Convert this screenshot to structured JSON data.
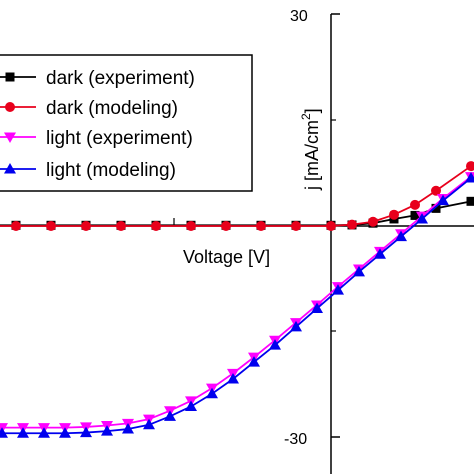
{
  "chart_data": {
    "type": "line",
    "xlabel": "Voltage [V]",
    "ylabel": "j [mA/cm",
    "ylabel_sup": "2",
    "ylabel_close": "]",
    "ylim": [
      -30,
      30
    ],
    "xlim": [
      -0.8,
      0.2
    ],
    "yticks": [
      "30",
      "-30"
    ],
    "legend_position": "top-left",
    "series": [
      {
        "name": "dark (experiment)",
        "color": "#000000",
        "marker": "square",
        "x": [
          -0.8,
          -0.75,
          -0.7,
          -0.65,
          -0.6,
          -0.55,
          -0.5,
          -0.45,
          -0.4,
          -0.35,
          -0.3,
          -0.25,
          -0.2,
          -0.15,
          -0.1,
          -0.05,
          0.0,
          0.03,
          0.06,
          0.09,
          0.12,
          0.15,
          0.2
        ],
        "y": [
          0.1,
          0.1,
          0.1,
          0.1,
          0.1,
          0.1,
          0.1,
          0.1,
          0.1,
          0.1,
          0.1,
          0.1,
          0.1,
          0.1,
          0.1,
          0.1,
          0.1,
          0.15,
          0.4,
          1.0,
          1.5,
          2.5,
          3.5
        ]
      },
      {
        "name": "dark (modeling)",
        "color": "#e8001c",
        "marker": "circle",
        "x": [
          -0.8,
          -0.75,
          -0.7,
          -0.65,
          -0.6,
          -0.55,
          -0.5,
          -0.45,
          -0.4,
          -0.35,
          -0.3,
          -0.25,
          -0.2,
          -0.15,
          -0.1,
          -0.05,
          0.0,
          0.03,
          0.06,
          0.09,
          0.12,
          0.15,
          0.2
        ],
        "y": [
          0.0,
          0.0,
          0.0,
          0.0,
          0.0,
          0.0,
          0.0,
          0.0,
          0.0,
          0.0,
          0.0,
          0.0,
          0.0,
          0.0,
          0.0,
          0.0,
          0.0,
          0.2,
          0.6,
          1.6,
          3.0,
          5.0,
          8.5
        ]
      },
      {
        "name": "light (experiment)",
        "color": "#ff00ff",
        "marker": "triangle-down",
        "x": [
          -0.8,
          -0.77,
          -0.74,
          -0.71,
          -0.68,
          -0.65,
          -0.62,
          -0.59,
          -0.56,
          -0.53,
          -0.5,
          -0.47,
          -0.44,
          -0.41,
          -0.38,
          -0.35,
          -0.32,
          -0.29,
          -0.26,
          -0.23,
          -0.2,
          -0.17,
          -0.14,
          -0.11,
          -0.08,
          -0.05,
          -0.02,
          0.01,
          0.04,
          0.07,
          0.1,
          0.13,
          0.16,
          0.2
        ],
        "y": [
          -28.6,
          -28.6,
          -28.6,
          -28.6,
          -28.6,
          -28.6,
          -28.6,
          -28.6,
          -28.6,
          -28.6,
          -28.6,
          -28.6,
          -28.6,
          -28.6,
          -28.6,
          -28.5,
          -28.3,
          -28.0,
          -27.4,
          -26.2,
          -24.8,
          -23.0,
          -20.9,
          -18.6,
          -16.2,
          -13.7,
          -11.2,
          -8.6,
          -6.1,
          -3.6,
          -1.1,
          1.4,
          3.9,
          7.0
        ]
      },
      {
        "name": "light (modeling)",
        "color": "#0000ee",
        "marker": "triangle-up",
        "x": [
          -0.8,
          -0.77,
          -0.74,
          -0.71,
          -0.68,
          -0.65,
          -0.62,
          -0.59,
          -0.56,
          -0.53,
          -0.5,
          -0.47,
          -0.44,
          -0.41,
          -0.38,
          -0.35,
          -0.32,
          -0.29,
          -0.26,
          -0.23,
          -0.2,
          -0.17,
          -0.14,
          -0.11,
          -0.08,
          -0.05,
          -0.02,
          0.01,
          0.04,
          0.07,
          0.1,
          0.13,
          0.16,
          0.2
        ],
        "y": [
          -29.4,
          -29.4,
          -29.4,
          -29.4,
          -29.4,
          -29.4,
          -29.4,
          -29.4,
          -29.4,
          -29.4,
          -29.4,
          -29.4,
          -29.4,
          -29.4,
          -29.4,
          -29.3,
          -29.1,
          -28.8,
          -28.2,
          -27.0,
          -25.6,
          -23.8,
          -21.7,
          -19.3,
          -16.9,
          -14.3,
          -11.7,
          -9.1,
          -6.5,
          -4.0,
          -1.5,
          1.0,
          3.6,
          6.8
        ]
      }
    ]
  }
}
